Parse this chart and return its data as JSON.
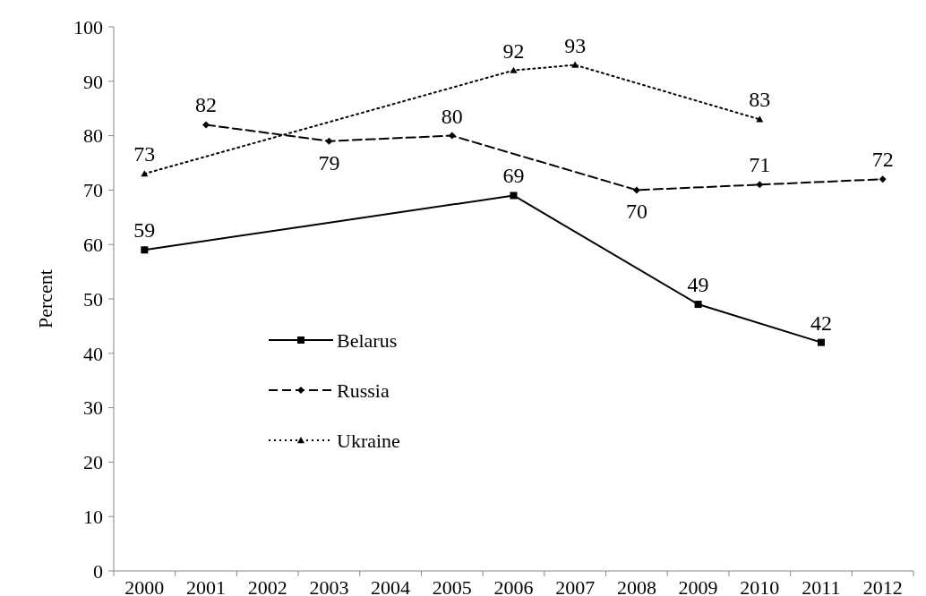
{
  "chart_data": {
    "type": "line",
    "ylabel": "Percent",
    "categories": [
      "2000",
      "2001",
      "2002",
      "2003",
      "2004",
      "2005",
      "2006",
      "2007",
      "2008",
      "2009",
      "2010",
      "2011",
      "2012"
    ],
    "series": [
      {
        "name": "Belarus",
        "color": "#000000",
        "marker": "square",
        "line_style": "solid",
        "values": [
          59,
          null,
          null,
          null,
          null,
          null,
          69,
          null,
          null,
          49,
          null,
          42,
          null
        ]
      },
      {
        "name": "Russia",
        "color": "#000000",
        "marker": "diamond",
        "line_style": "dashed",
        "values": [
          null,
          82,
          null,
          79,
          null,
          80,
          null,
          null,
          70,
          null,
          71,
          null,
          72
        ]
      },
      {
        "name": "Ukraine",
        "color": "#000000",
        "marker": "triangle",
        "line_style": "dotted",
        "values": [
          73,
          null,
          null,
          null,
          null,
          null,
          92,
          93,
          null,
          null,
          83,
          null,
          null
        ]
      }
    ],
    "ylim": [
      0,
      100
    ],
    "yticks": [
      0,
      10,
      20,
      30,
      40,
      50,
      60,
      70,
      80,
      90,
      100
    ],
    "grid": false,
    "legend": "left",
    "data_labels": true
  }
}
